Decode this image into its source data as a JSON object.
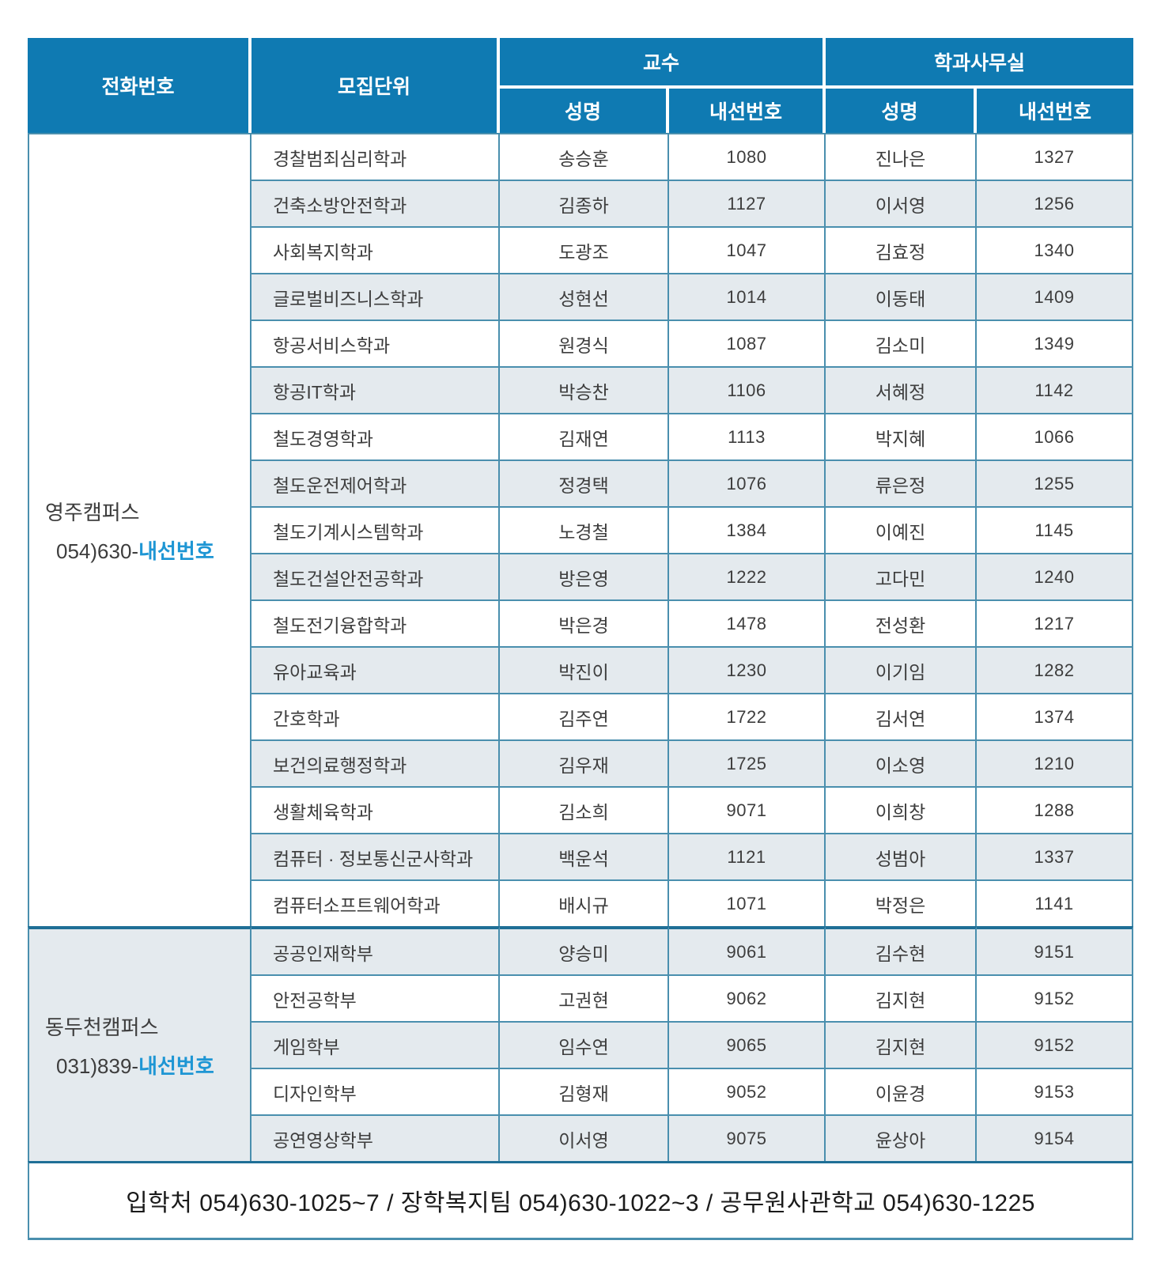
{
  "header": {
    "phone": "전화번호",
    "unit": "모집단위",
    "professor": "교수",
    "office": "학과사무실",
    "name": "성명",
    "extension": "내선번호"
  },
  "colors": {
    "header_blue": "#0f7ab2",
    "row_shade": "#e4eaee",
    "thin_border": "#4a8fae",
    "thick_border": "#1f6f96",
    "extension_blue": "#1e96d4"
  },
  "sections": [
    {
      "campus": "영주캠퍼스",
      "phone_prefix": "054)630-",
      "phone_suffix": "내선번호",
      "rows": [
        {
          "dept": "경찰범죄심리학과",
          "prof_name": "송승훈",
          "prof_ext": "1080",
          "office_name": "진나은",
          "office_ext": "1327"
        },
        {
          "dept": "건축소방안전학과",
          "prof_name": "김종하",
          "prof_ext": "1127",
          "office_name": "이서영",
          "office_ext": "1256"
        },
        {
          "dept": "사회복지학과",
          "prof_name": "도광조",
          "prof_ext": "1047",
          "office_name": "김효정",
          "office_ext": "1340"
        },
        {
          "dept": "글로벌비즈니스학과",
          "prof_name": "성현선",
          "prof_ext": "1014",
          "office_name": "이동태",
          "office_ext": "1409"
        },
        {
          "dept": "항공서비스학과",
          "prof_name": "원경식",
          "prof_ext": "1087",
          "office_name": "김소미",
          "office_ext": "1349"
        },
        {
          "dept": "항공IT학과",
          "prof_name": "박승찬",
          "prof_ext": "1106",
          "office_name": "서혜정",
          "office_ext": "1142"
        },
        {
          "dept": "철도경영학과",
          "prof_name": "김재연",
          "prof_ext": "1113",
          "office_name": "박지혜",
          "office_ext": "1066"
        },
        {
          "dept": "철도운전제어학과",
          "prof_name": "정경택",
          "prof_ext": "1076",
          "office_name": "류은정",
          "office_ext": "1255"
        },
        {
          "dept": "철도기계시스템학과",
          "prof_name": "노경철",
          "prof_ext": "1384",
          "office_name": "이예진",
          "office_ext": "1145"
        },
        {
          "dept": "철도건설안전공학과",
          "prof_name": "방은영",
          "prof_ext": "1222",
          "office_name": "고다민",
          "office_ext": "1240"
        },
        {
          "dept": "철도전기융합학과",
          "prof_name": "박은경",
          "prof_ext": "1478",
          "office_name": "전성환",
          "office_ext": "1217"
        },
        {
          "dept": "유아교육과",
          "prof_name": "박진이",
          "prof_ext": "1230",
          "office_name": "이기임",
          "office_ext": "1282"
        },
        {
          "dept": "간호학과",
          "prof_name": "김주연",
          "prof_ext": "1722",
          "office_name": "김서연",
          "office_ext": "1374"
        },
        {
          "dept": "보건의료행정학과",
          "prof_name": "김우재",
          "prof_ext": "1725",
          "office_name": "이소영",
          "office_ext": "1210"
        },
        {
          "dept": "생활체육학과",
          "prof_name": "김소희",
          "prof_ext": "9071",
          "office_name": "이희창",
          "office_ext": "1288"
        },
        {
          "dept": "컴퓨터 · 정보통신군사학과",
          "prof_name": "백운석",
          "prof_ext": "1121",
          "office_name": "성범아",
          "office_ext": "1337"
        },
        {
          "dept": "컴퓨터소프트웨어학과",
          "prof_name": "배시규",
          "prof_ext": "1071",
          "office_name": "박정은",
          "office_ext": "1141"
        }
      ]
    },
    {
      "campus": "동두천캠퍼스",
      "phone_prefix": "031)839-",
      "phone_suffix": "내선번호",
      "rows": [
        {
          "dept": "공공인재학부",
          "prof_name": "양승미",
          "prof_ext": "9061",
          "office_name": "김수현",
          "office_ext": "9151"
        },
        {
          "dept": "안전공학부",
          "prof_name": "고권현",
          "prof_ext": "9062",
          "office_name": "김지현",
          "office_ext": "9152"
        },
        {
          "dept": "게임학부",
          "prof_name": "임수연",
          "prof_ext": "9065",
          "office_name": "김지현",
          "office_ext": "9152"
        },
        {
          "dept": "디자인학부",
          "prof_name": "김형재",
          "prof_ext": "9052",
          "office_name": "이윤경",
          "office_ext": "9153"
        },
        {
          "dept": "공연영상학부",
          "prof_name": "이서영",
          "prof_ext": "9075",
          "office_name": "윤상아",
          "office_ext": "9154"
        }
      ]
    }
  ],
  "footer": {
    "text": "입학처 054)630-1025~7  /  장학복지팀 054)630-1022~3 / 공무원사관학교 054)630-1225"
  }
}
